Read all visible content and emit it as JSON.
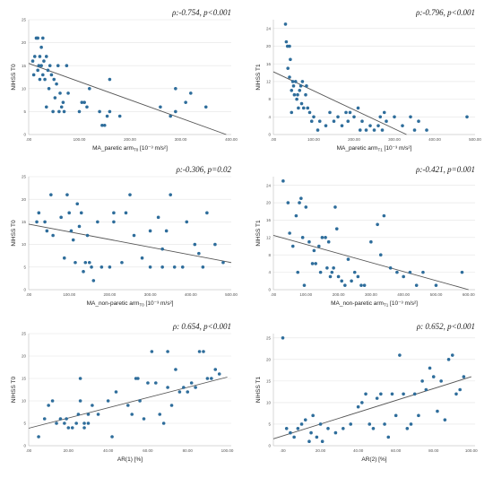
{
  "chart_data": [
    {
      "type": "scatter",
      "annotation": "ρ:-0.754, p<0.001",
      "xlabel": "MA_paretic arm",
      "xlabel_sub": "T0",
      "xlabel_units": " [10⁻³ m/s²]",
      "ylabel": "NIHSS T0",
      "xlim": [
        0,
        400
      ],
      "ylim": [
        0,
        25
      ],
      "xticks": [
        0,
        100,
        200,
        300,
        400
      ],
      "xtick_labels": [
        ".00",
        "100.00",
        "200.00",
        "300.00",
        "400.00"
      ],
      "yticks": [
        0,
        5,
        10,
        15,
        20,
        25
      ],
      "ytick_labels": [
        "0",
        "5",
        "10",
        "15",
        "20",
        "25"
      ],
      "fit": [
        [
          0,
          15.5
        ],
        [
          390,
          0
        ]
      ],
      "points": [
        [
          8,
          16
        ],
        [
          10,
          13
        ],
        [
          12,
          17
        ],
        [
          15,
          21
        ],
        [
          18,
          14
        ],
        [
          18,
          21
        ],
        [
          20,
          15
        ],
        [
          22,
          12
        ],
        [
          22,
          17
        ],
        [
          25,
          15
        ],
        [
          25,
          19
        ],
        [
          28,
          21
        ],
        [
          28,
          13
        ],
        [
          30,
          16
        ],
        [
          32,
          12
        ],
        [
          35,
          17
        ],
        [
          35,
          6
        ],
        [
          38,
          14
        ],
        [
          40,
          10
        ],
        [
          42,
          15
        ],
        [
          45,
          13
        ],
        [
          48,
          5
        ],
        [
          50,
          12
        ],
        [
          52,
          8
        ],
        [
          55,
          11
        ],
        [
          58,
          15
        ],
        [
          60,
          5
        ],
        [
          62,
          9
        ],
        [
          65,
          6
        ],
        [
          68,
          7
        ],
        [
          70,
          5
        ],
        [
          75,
          15
        ],
        [
          78,
          9
        ],
        [
          100,
          5
        ],
        [
          105,
          7
        ],
        [
          110,
          7
        ],
        [
          115,
          6
        ],
        [
          120,
          10
        ],
        [
          140,
          5
        ],
        [
          145,
          2
        ],
        [
          150,
          2
        ],
        [
          155,
          4
        ],
        [
          160,
          12
        ],
        [
          160,
          5
        ],
        [
          180,
          4
        ],
        [
          260,
          6
        ],
        [
          280,
          4
        ],
        [
          290,
          5
        ],
        [
          290,
          10
        ],
        [
          310,
          7
        ],
        [
          320,
          9
        ],
        [
          350,
          6
        ]
      ]
    },
    {
      "type": "scatter",
      "annotation": "ρ:-0.796, p<0.001",
      "xlabel": "MA_paretic arm",
      "xlabel_sub": "T1",
      "xlabel_units": " [10⁻³ m/s²]",
      "ylabel": "NIHSS T1",
      "xlim": [
        0,
        500
      ],
      "ylim": [
        0,
        26
      ],
      "xticks": [
        0,
        100,
        200,
        300,
        400,
        500
      ],
      "xtick_labels": [
        ".00",
        "100.00",
        "200.00",
        "300.00",
        "400.00",
        "500.00"
      ],
      "yticks": [
        0,
        4,
        8,
        12,
        16,
        20,
        24
      ],
      "ytick_labels": [
        "0",
        "4",
        "8",
        "12",
        "16",
        "20",
        "24"
      ],
      "fit": [
        [
          0,
          14.2
        ],
        [
          330,
          0
        ]
      ],
      "points": [
        [
          30,
          25
        ],
        [
          32,
          21
        ],
        [
          35,
          20
        ],
        [
          36,
          15
        ],
        [
          40,
          20
        ],
        [
          40,
          13
        ],
        [
          42,
          17
        ],
        [
          45,
          10
        ],
        [
          45,
          5
        ],
        [
          48,
          12
        ],
        [
          50,
          11
        ],
        [
          52,
          9
        ],
        [
          55,
          12
        ],
        [
          58,
          8
        ],
        [
          60,
          9
        ],
        [
          62,
          6
        ],
        [
          65,
          10
        ],
        [
          68,
          11
        ],
        [
          70,
          7
        ],
        [
          72,
          12
        ],
        [
          75,
          6
        ],
        [
          80,
          9
        ],
        [
          82,
          11
        ],
        [
          85,
          6
        ],
        [
          90,
          5
        ],
        [
          95,
          3
        ],
        [
          100,
          4
        ],
        [
          110,
          1
        ],
        [
          115,
          3
        ],
        [
          130,
          2
        ],
        [
          140,
          5
        ],
        [
          150,
          3
        ],
        [
          160,
          4
        ],
        [
          170,
          2
        ],
        [
          180,
          5
        ],
        [
          185,
          3
        ],
        [
          190,
          5
        ],
        [
          200,
          4
        ],
        [
          210,
          6
        ],
        [
          215,
          1
        ],
        [
          220,
          3
        ],
        [
          230,
          1
        ],
        [
          240,
          2
        ],
        [
          250,
          1
        ],
        [
          260,
          2
        ],
        [
          265,
          4
        ],
        [
          270,
          1
        ],
        [
          275,
          5
        ],
        [
          280,
          3
        ],
        [
          300,
          4
        ],
        [
          320,
          2
        ],
        [
          340,
          4
        ],
        [
          350,
          1
        ],
        [
          360,
          3
        ],
        [
          380,
          1
        ],
        [
          480,
          4
        ]
      ]
    },
    {
      "type": "scatter",
      "annotation": "ρ:-0.306, p=0.02",
      "xlabel": "MA_non-paretic arm",
      "xlabel_sub": "T0",
      "xlabel_units": " [10⁻³ m/s²]",
      "ylabel": "NIHSS T0",
      "xlim": [
        0,
        500
      ],
      "ylim": [
        0,
        25
      ],
      "xticks": [
        0,
        100,
        200,
        300,
        400,
        500
      ],
      "xtick_labels": [
        ".00",
        "100.00",
        "200.00",
        "300.00",
        "400.00",
        "500.00"
      ],
      "yticks": [
        0,
        5,
        10,
        15,
        20,
        25
      ],
      "ytick_labels": [
        "0",
        "5",
        "10",
        "15",
        "20",
        "25"
      ],
      "fit": [
        [
          0,
          14.5
        ],
        [
          500,
          6
        ]
      ],
      "points": [
        [
          20,
          15
        ],
        [
          25,
          17
        ],
        [
          40,
          15
        ],
        [
          45,
          13
        ],
        [
          55,
          21
        ],
        [
          60,
          12
        ],
        [
          80,
          16
        ],
        [
          88,
          7
        ],
        [
          95,
          21
        ],
        [
          100,
          17
        ],
        [
          105,
          13
        ],
        [
          110,
          11
        ],
        [
          115,
          6
        ],
        [
          120,
          19
        ],
        [
          125,
          14
        ],
        [
          130,
          17
        ],
        [
          135,
          4
        ],
        [
          140,
          6
        ],
        [
          145,
          12
        ],
        [
          150,
          6
        ],
        [
          155,
          5
        ],
        [
          160,
          2
        ],
        [
          170,
          15
        ],
        [
          180,
          5
        ],
        [
          200,
          5
        ],
        [
          210,
          15
        ],
        [
          210,
          17
        ],
        [
          230,
          6
        ],
        [
          240,
          17
        ],
        [
          250,
          21
        ],
        [
          260,
          12
        ],
        [
          280,
          7
        ],
        [
          300,
          13
        ],
        [
          300,
          5
        ],
        [
          320,
          16
        ],
        [
          330,
          9
        ],
        [
          330,
          5
        ],
        [
          340,
          13
        ],
        [
          350,
          21
        ],
        [
          360,
          5
        ],
        [
          380,
          5
        ],
        [
          390,
          15
        ],
        [
          410,
          10
        ],
        [
          420,
          8
        ],
        [
          430,
          5
        ],
        [
          440,
          17
        ],
        [
          460,
          10
        ],
        [
          480,
          6
        ]
      ]
    },
    {
      "type": "scatter",
      "annotation": "ρ:-0.421, p=0.001",
      "xlabel": "MA_non-paretic arm",
      "xlabel_sub": "T1",
      "xlabel_units": " [10⁻³ m/s²]",
      "ylabel": "NIHSS T1",
      "xlim": [
        0,
        620
      ],
      "ylim": [
        0,
        26
      ],
      "xticks": [
        0,
        100,
        200,
        300,
        400,
        500,
        600
      ],
      "xtick_labels": [
        ".00",
        "100.00",
        "200.00",
        "300.00",
        "400.00",
        "500.00",
        "600.00"
      ],
      "yticks": [
        0,
        4,
        8,
        12,
        16,
        20,
        24
      ],
      "ytick_labels": [
        "0",
        "4",
        "8",
        "12",
        "16",
        "20",
        "24"
      ],
      "fit": [
        [
          0,
          12.5
        ],
        [
          600,
          0
        ]
      ],
      "points": [
        [
          30,
          25
        ],
        [
          45,
          20
        ],
        [
          50,
          13
        ],
        [
          60,
          10
        ],
        [
          70,
          17
        ],
        [
          75,
          4
        ],
        [
          80,
          20
        ],
        [
          85,
          21
        ],
        [
          90,
          12
        ],
        [
          95,
          1
        ],
        [
          100,
          19
        ],
        [
          110,
          11
        ],
        [
          120,
          6
        ],
        [
          125,
          9
        ],
        [
          130,
          6
        ],
        [
          140,
          10
        ],
        [
          145,
          4
        ],
        [
          150,
          12
        ],
        [
          160,
          12
        ],
        [
          165,
          5
        ],
        [
          170,
          11
        ],
        [
          175,
          3
        ],
        [
          180,
          4
        ],
        [
          185,
          5
        ],
        [
          190,
          19
        ],
        [
          195,
          14
        ],
        [
          200,
          3
        ],
        [
          210,
          2
        ],
        [
          220,
          1
        ],
        [
          230,
          7
        ],
        [
          240,
          2
        ],
        [
          250,
          4
        ],
        [
          260,
          3
        ],
        [
          270,
          1
        ],
        [
          280,
          1
        ],
        [
          300,
          11
        ],
        [
          320,
          15
        ],
        [
          330,
          8
        ],
        [
          340,
          17
        ],
        [
          360,
          5
        ],
        [
          380,
          4
        ],
        [
          400,
          3
        ],
        [
          420,
          4
        ],
        [
          440,
          1
        ],
        [
          460,
          4
        ],
        [
          500,
          1
        ],
        [
          580,
          4
        ]
      ]
    },
    {
      "type": "scatter",
      "annotation": "ρ: 0.654, p<0.001",
      "xlabel": "AR(1) [%]",
      "xlabel_sub": "",
      "xlabel_units": "",
      "ylabel": "NIHSS T0",
      "xlim": [
        0,
        102
      ],
      "ylim": [
        0,
        25
      ],
      "xticks": [
        0,
        20,
        40,
        60,
        80,
        100
      ],
      "xtick_labels": [
        ".00",
        "20.00",
        "40.00",
        "60.00",
        "80.00",
        "100.00"
      ],
      "yticks": [
        0,
        5,
        10,
        15,
        20,
        25
      ],
      "ytick_labels": [
        "0",
        "5",
        "10",
        "15",
        "20",
        "25"
      ],
      "fit": [
        [
          0,
          3.9
        ],
        [
          100,
          15.3
        ]
      ],
      "points": [
        [
          5,
          2
        ],
        [
          8,
          6
        ],
        [
          10,
          9
        ],
        [
          12,
          10
        ],
        [
          14,
          5
        ],
        [
          16,
          6
        ],
        [
          18,
          5
        ],
        [
          19,
          6
        ],
        [
          20,
          4
        ],
        [
          22,
          4
        ],
        [
          24,
          5
        ],
        [
          25,
          7
        ],
        [
          26,
          15
        ],
        [
          26,
          10
        ],
        [
          28,
          4
        ],
        [
          28,
          5
        ],
        [
          30,
          5
        ],
        [
          30,
          7
        ],
        [
          32,
          9
        ],
        [
          35,
          7
        ],
        [
          40,
          10
        ],
        [
          42,
          2
        ],
        [
          44,
          12
        ],
        [
          50,
          9
        ],
        [
          52,
          7
        ],
        [
          54,
          15
        ],
        [
          55,
          15
        ],
        [
          56,
          10
        ],
        [
          58,
          6
        ],
        [
          60,
          14
        ],
        [
          62,
          21
        ],
        [
          64,
          14
        ],
        [
          66,
          7
        ],
        [
          68,
          5
        ],
        [
          70,
          13
        ],
        [
          70,
          21
        ],
        [
          72,
          9
        ],
        [
          74,
          17
        ],
        [
          76,
          12
        ],
        [
          78,
          13
        ],
        [
          80,
          12
        ],
        [
          82,
          14
        ],
        [
          84,
          13
        ],
        [
          86,
          21
        ],
        [
          88,
          21
        ],
        [
          90,
          15
        ],
        [
          92,
          15
        ],
        [
          94,
          17
        ],
        [
          96,
          16
        ]
      ]
    },
    {
      "type": "scatter",
      "annotation": "ρ: 0.652, p<0.001",
      "xlabel": "AR(2) [%]",
      "xlabel_sub": "",
      "xlabel_units": "",
      "ylabel": "NIHSS T1",
      "xlim": [
        -5,
        102
      ],
      "ylim": [
        0,
        26
      ],
      "xticks": [
        0,
        20,
        40,
        60,
        80,
        100
      ],
      "xtick_labels": [
        ".00",
        "20.00",
        "40.00",
        "60.00",
        "80.00",
        "100.00"
      ],
      "yticks": [
        0,
        5,
        10,
        15,
        20,
        25
      ],
      "ytick_labels": [
        "0",
        "5",
        "10",
        "15",
        "20",
        "25"
      ],
      "fit": [
        [
          -5,
          1.6
        ],
        [
          100,
          16
        ]
      ],
      "points": [
        [
          0,
          25
        ],
        [
          2,
          4
        ],
        [
          4,
          3
        ],
        [
          6,
          2
        ],
        [
          8,
          4
        ],
        [
          10,
          5
        ],
        [
          12,
          6
        ],
        [
          14,
          1
        ],
        [
          15,
          3
        ],
        [
          16,
          7
        ],
        [
          18,
          2
        ],
        [
          20,
          5
        ],
        [
          21,
          1
        ],
        [
          24,
          4
        ],
        [
          28,
          3
        ],
        [
          32,
          4
        ],
        [
          36,
          5
        ],
        [
          40,
          9
        ],
        [
          42,
          10
        ],
        [
          44,
          12
        ],
        [
          46,
          5
        ],
        [
          48,
          4
        ],
        [
          50,
          11
        ],
        [
          52,
          12
        ],
        [
          54,
          5
        ],
        [
          56,
          2
        ],
        [
          58,
          12
        ],
        [
          60,
          7
        ],
        [
          62,
          21
        ],
        [
          64,
          12
        ],
        [
          66,
          4
        ],
        [
          68,
          5
        ],
        [
          70,
          12
        ],
        [
          72,
          7
        ],
        [
          74,
          15
        ],
        [
          76,
          13
        ],
        [
          78,
          18
        ],
        [
          80,
          16
        ],
        [
          82,
          8
        ],
        [
          84,
          15
        ],
        [
          86,
          6
        ],
        [
          88,
          20
        ],
        [
          90,
          21
        ],
        [
          92,
          12
        ],
        [
          94,
          13
        ],
        [
          96,
          16
        ]
      ]
    }
  ]
}
